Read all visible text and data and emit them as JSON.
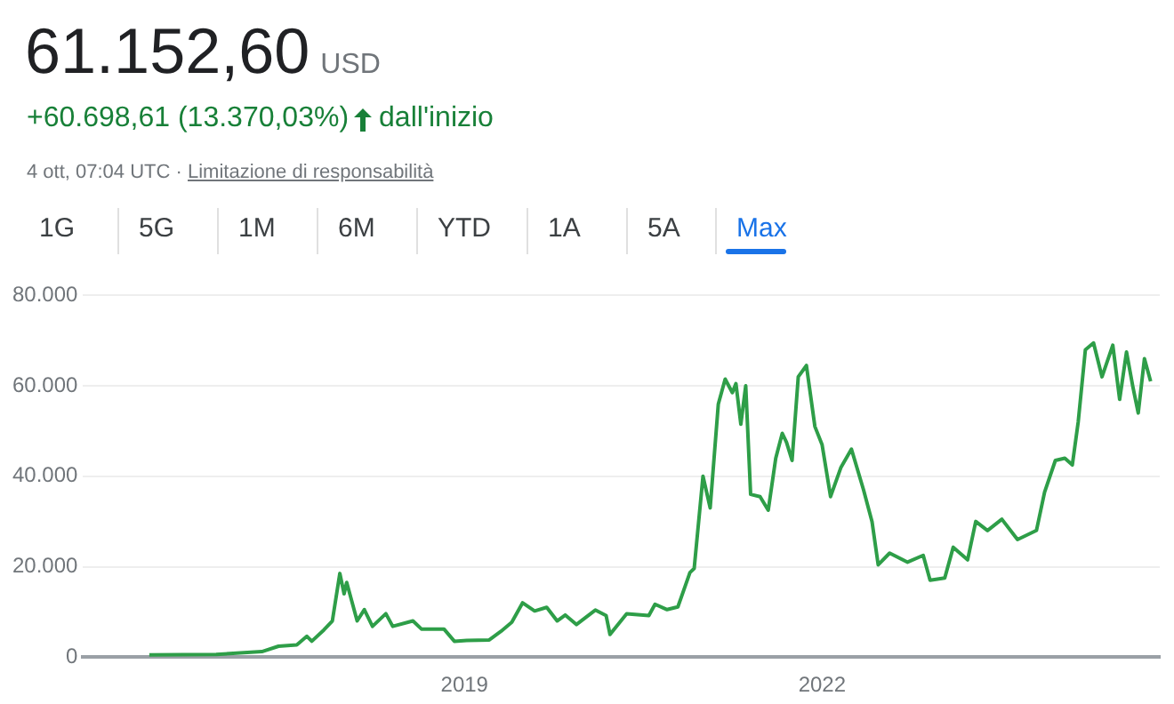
{
  "chart_data": {
    "type": "line",
    "title": "61.152,60",
    "subtitle": "USD",
    "annotations": [
      "+60.698,61 (13.370,03%)",
      "dall'inizio",
      "4 ott, 07:04 UTC ·",
      "Limitazione di responsabilità",
      "1G",
      "5G",
      "1M",
      "6M",
      "YTD",
      "1A",
      "5A",
      "Max"
    ],
    "x": [
      "2016-05-10",
      "2016-12-01",
      "2017-04-20",
      "2017-06-10",
      "2017-08-05",
      "2017-09-05",
      "2017-09-20",
      "2017-10-27",
      "2017-11-22",
      "2017-12-15",
      "2017-12-28",
      "2018-01-05",
      "2018-02-06",
      "2018-02-28",
      "2018-03-25",
      "2018-05-05",
      "2018-05-26",
      "2018-07-27",
      "2018-08-22",
      "2018-10-30",
      "2018-12-01",
      "2019-01-08",
      "2019-03-18",
      "2019-04-23",
      "2019-05-26",
      "2019-06-28",
      "2019-08-04",
      "2019-09-10",
      "2019-10-12",
      "2019-11-06",
      "2019-12-10",
      "2020-02-06",
      "2020-03-10",
      "2020-03-22",
      "2020-05-12",
      "2020-07-19",
      "2020-08-07",
      "2020-09-13",
      "2020-10-16",
      "2020-11-22",
      "2020-12-05",
      "2021-01-01",
      "2021-01-23",
      "2021-02-17",
      "2021-03-10",
      "2021-04-01",
      "2021-04-12",
      "2021-04-27",
      "2021-05-12",
      "2021-05-27",
      "2021-06-25",
      "2021-07-20",
      "2021-08-12",
      "2021-09-01",
      "2021-09-14",
      "2021-10-01",
      "2021-10-20",
      "2021-11-14",
      "2021-12-10",
      "2022-01-01",
      "2022-01-27",
      "2022-02-28",
      "2022-04-01",
      "2022-05-08",
      "2022-06-03",
      "2022-06-22",
      "2022-07-27",
      "2022-09-20",
      "2022-11-07",
      "2022-11-28",
      "2023-01-12",
      "2023-02-07",
      "2023-03-23",
      "2023-04-17",
      "2023-05-23",
      "2023-07-06",
      "2023-08-23",
      "2023-10-20",
      "2023-11-14",
      "2023-12-17",
      "2024-01-15",
      "2024-02-07",
      "2024-02-25",
      "2024-03-18",
      "2024-04-12",
      "2024-05-08",
      "2024-06-10",
      "2024-07-01",
      "2024-07-22",
      "2024-08-10",
      "2024-08-27",
      "2024-09-15",
      "2024-10-04"
    ],
    "series": [
      {
        "color": "#2e9e48",
        "values": [
          500,
          600,
          1200,
          2400,
          2700,
          4600,
          3500,
          6000,
          8000,
          18500,
          14000,
          16500,
          8000,
          10500,
          6800,
          9600,
          6800,
          8000,
          6200,
          6200,
          3500,
          3700,
          3800,
          5700,
          7700,
          12000,
          10200,
          11000,
          8000,
          9300,
          7200,
          10400,
          9200,
          5000,
          9600,
          9200,
          11700,
          10500,
          11100,
          18700,
          19600,
          40000,
          33000,
          56000,
          61500,
          58500,
          60500,
          51500,
          60000,
          36000,
          35500,
          32500,
          44000,
          49500,
          47500,
          43500,
          62000,
          64500,
          51000,
          47000,
          35500,
          42000,
          46000,
          37000,
          30000,
          20400,
          23000,
          21000,
          22500,
          17000,
          17500,
          24300,
          21500,
          30000,
          28000,
          30500,
          26000,
          28000,
          36500,
          43500,
          44000,
          42500,
          52000,
          68000,
          69500,
          62000,
          69000,
          57000,
          67500,
          60000,
          54000,
          66000,
          61000
        ]
      }
    ],
    "xlim": [
      "2015-10-20",
      "2024-11-01"
    ],
    "xticks": [
      {
        "value": "2019-01-01",
        "label": "2019"
      },
      {
        "value": "2022-01-01",
        "label": "2022"
      }
    ],
    "ylim": [
      0,
      80000
    ],
    "yticks": [
      0,
      {
        "value": 20000,
        "label": "20.000"
      },
      {
        "value": 40000,
        "label": "40.000"
      },
      {
        "value": 60000,
        "label": "60.000"
      },
      {
        "value": 80000,
        "label": "80.000"
      }
    ],
    "grid": "y",
    "legend": false,
    "marker": "none",
    "line_style": "solid"
  }
}
